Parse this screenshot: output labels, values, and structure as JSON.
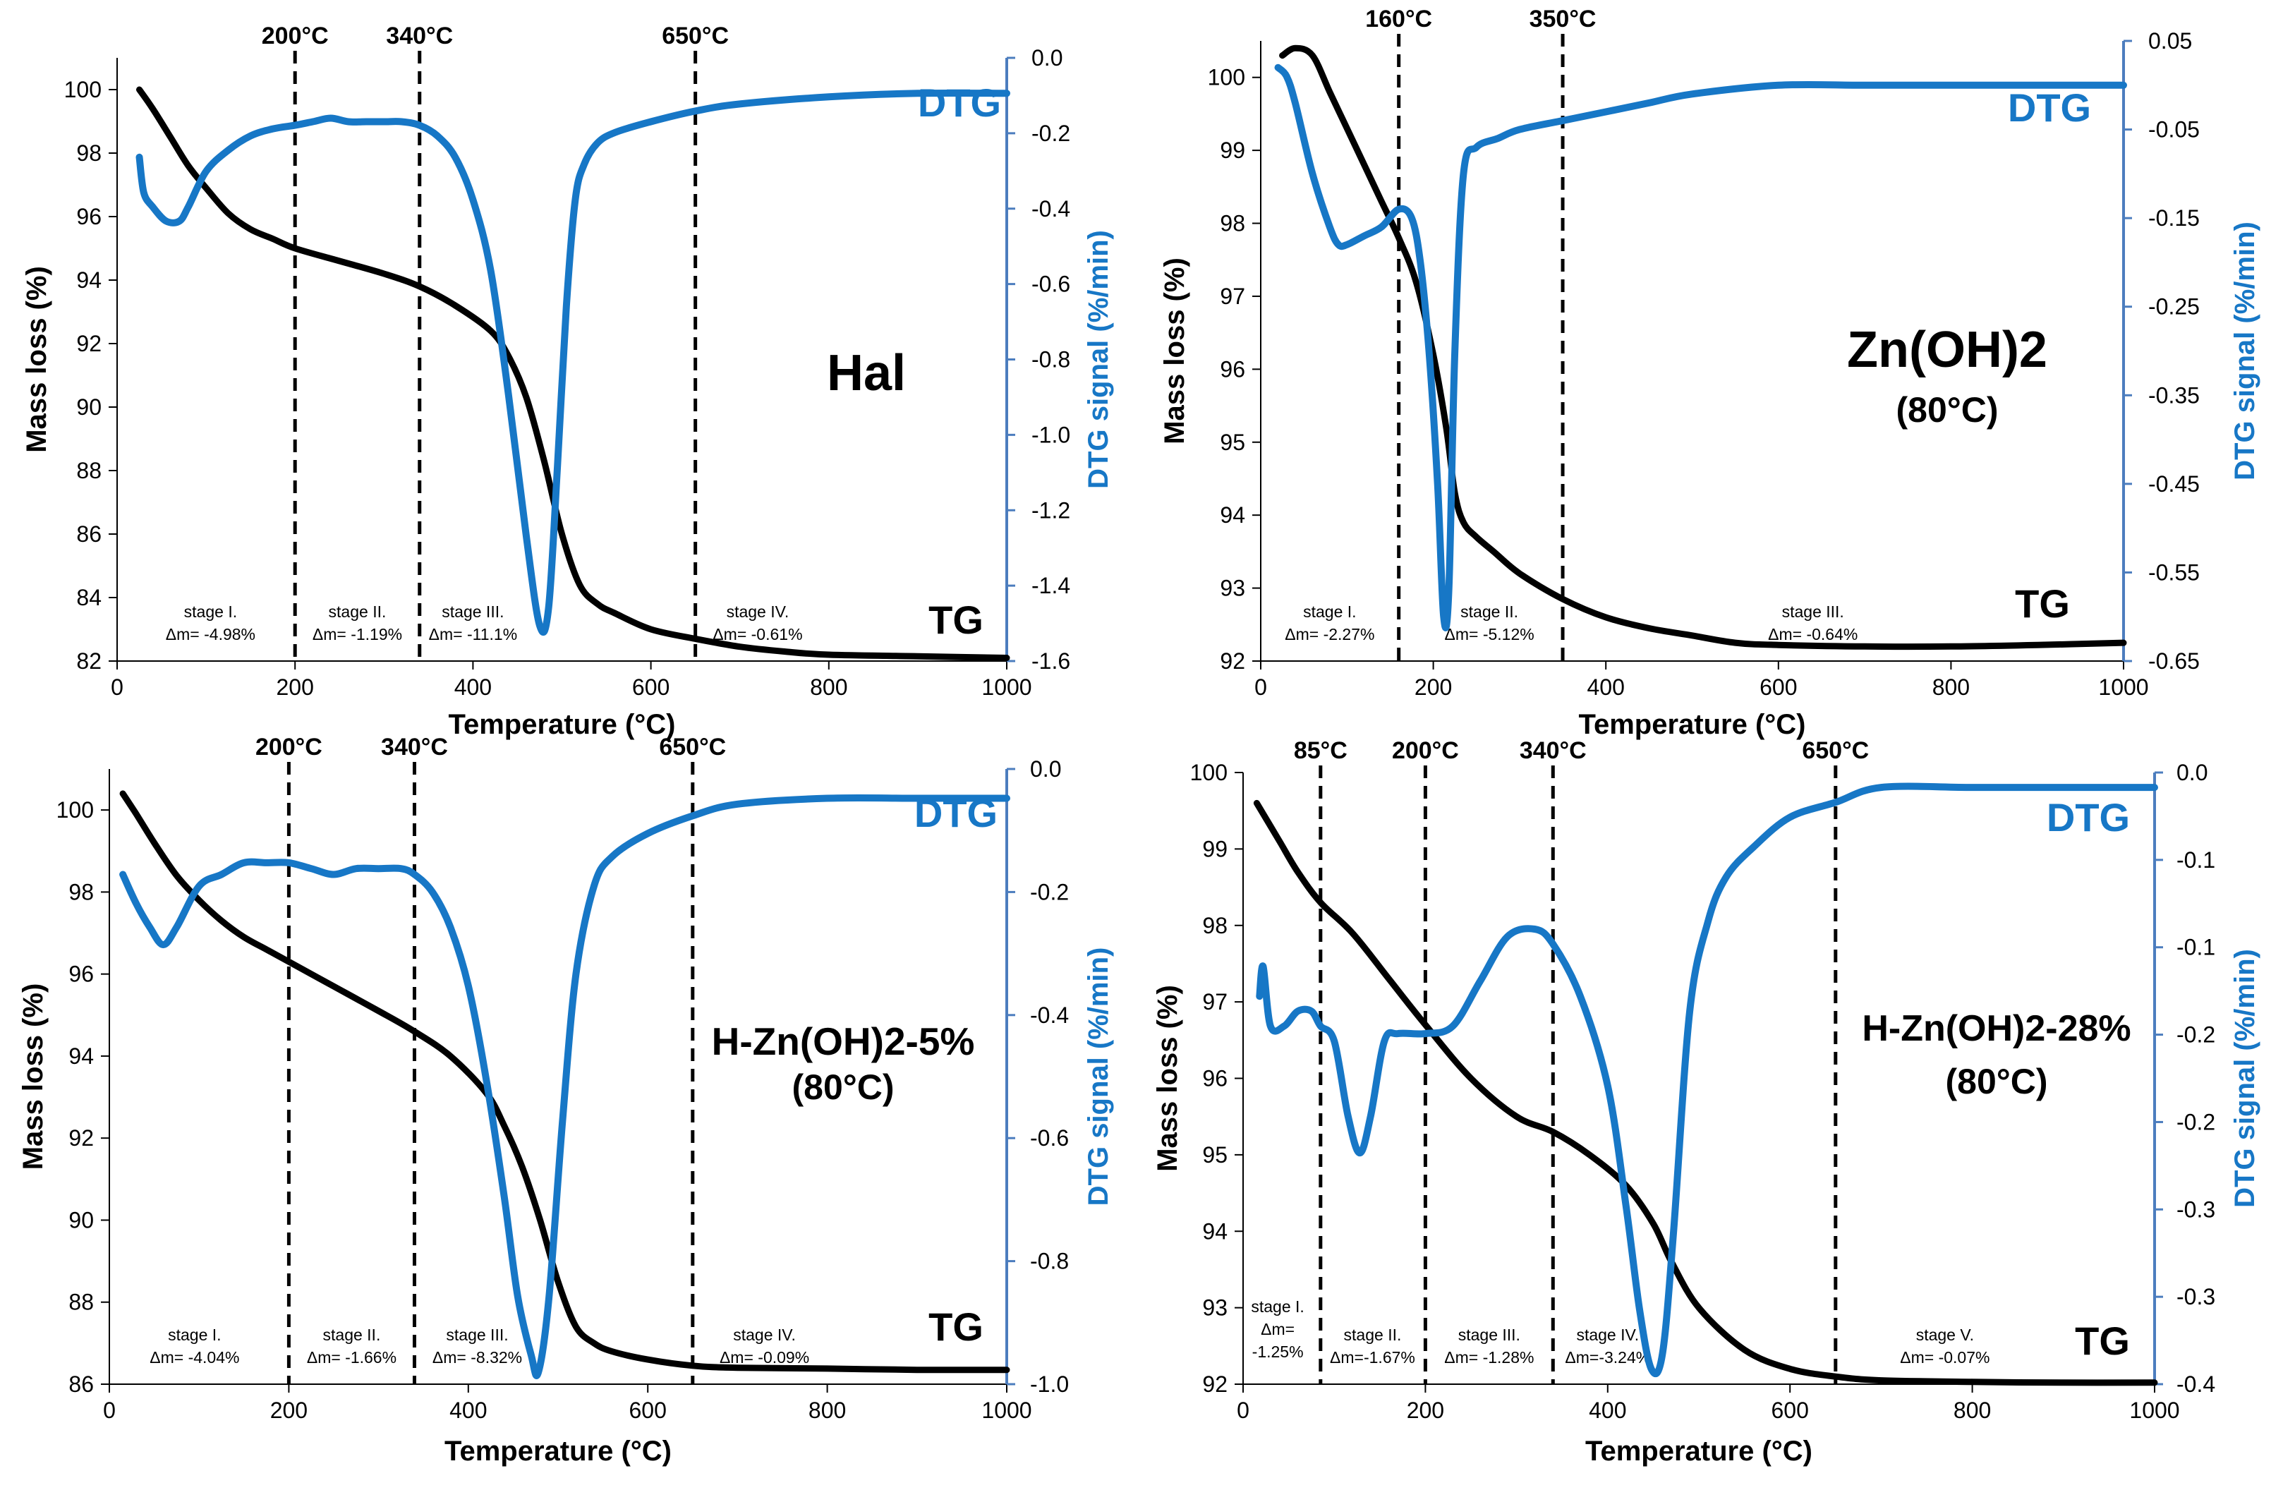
{
  "colors": {
    "tg": "#000000",
    "dtg": "#1777C6",
    "axis_right": "#4C7DBE"
  },
  "chart_data": [
    {
      "type": "line",
      "title": "Hal",
      "subtitle": "",
      "xlabel": "Temperature (°C)",
      "ylabel": "Mass loss (%)",
      "y2label": "DTG signal (%/min)",
      "xlim": [
        0,
        1000
      ],
      "ylim": [
        82,
        101
      ],
      "y2lim": [
        -1.6,
        0.1
      ],
      "xticks": [
        "0",
        "200",
        "400",
        "600",
        "800",
        "1000"
      ],
      "yticks": [
        "82",
        "84",
        "86",
        "88",
        "90",
        "92",
        "94",
        "96",
        "98",
        "100"
      ],
      "y2ticks": [
        "-1.6",
        "-1.4",
        "-1.2",
        "-1.0",
        "-0.8",
        "-0.6",
        "-0.4",
        "-0.2",
        "0.0"
      ],
      "vlines": [
        {
          "x": 200,
          "label": "200°C"
        },
        {
          "x": 340,
          "label": "340°C"
        },
        {
          "x": 650,
          "label": "650°C"
        }
      ],
      "stages": [
        {
          "x": 105,
          "name": "stage I.",
          "dm": "Δm= -4.98%"
        },
        {
          "x": 270,
          "name": "stage II.",
          "dm": "Δm= -1.19%"
        },
        {
          "x": 400,
          "name": "stage III.",
          "dm": "Δm= -11.1%"
        },
        {
          "x": 720,
          "name": "stage IV.",
          "dm": "Δm= -0.61%"
        }
      ],
      "series": [
        {
          "name": "TG",
          "axis": "left",
          "x": [
            25,
            40,
            60,
            80,
            100,
            125,
            150,
            175,
            200,
            250,
            300,
            340,
            380,
            420,
            440,
            460,
            480,
            500,
            520,
            540,
            560,
            600,
            650,
            700,
            750,
            800,
            900,
            1000
          ],
          "y": [
            100.0,
            99.4,
            98.5,
            97.6,
            96.9,
            96.1,
            95.6,
            95.3,
            95.0,
            94.6,
            94.2,
            93.8,
            93.2,
            92.4,
            91.6,
            90.3,
            88.3,
            86.0,
            84.4,
            83.8,
            83.5,
            83.0,
            82.7,
            82.45,
            82.3,
            82.2,
            82.15,
            82.1
          ]
        },
        {
          "name": "DTG",
          "axis": "right",
          "x": [
            25,
            30,
            40,
            55,
            70,
            80,
            100,
            125,
            150,
            175,
            200,
            220,
            240,
            260,
            280,
            300,
            320,
            340,
            360,
            380,
            400,
            420,
            440,
            460,
            475,
            485,
            495,
            505,
            515,
            525,
            540,
            560,
            600,
            650,
            700,
            800,
            900,
            1000
          ],
          "y": [
            -0.18,
            -0.28,
            -0.32,
            -0.36,
            -0.36,
            -0.32,
            -0.22,
            -0.16,
            -0.12,
            -0.1,
            -0.09,
            -0.08,
            -0.07,
            -0.08,
            -0.08,
            -0.08,
            -0.08,
            -0.09,
            -0.12,
            -0.18,
            -0.3,
            -0.5,
            -0.85,
            -1.25,
            -1.5,
            -1.45,
            -1.05,
            -0.6,
            -0.3,
            -0.2,
            -0.14,
            -0.11,
            -0.08,
            -0.05,
            -0.03,
            -0.01,
            0.0,
            0.0
          ]
        }
      ]
    },
    {
      "type": "line",
      "title": "Zn(OH)2",
      "subtitle": "(80°C)",
      "xlabel": "Temperature (°C)",
      "ylabel": "Mass loss  (%)",
      "y2label": "DTG signal (%/min)",
      "xlim": [
        0,
        1000
      ],
      "ylim": [
        92,
        100.5
      ],
      "y2lim": [
        -0.65,
        0.05
      ],
      "xticks": [
        "0",
        "200",
        "400",
        "600",
        "800",
        "1000"
      ],
      "yticks": [
        "92",
        "93",
        "94",
        "95",
        "96",
        "97",
        "98",
        "99",
        "100"
      ],
      "y2ticks": [
        "-0.65",
        "-0.55",
        "-0.45",
        "-0.35",
        "-0.25",
        "-0.15",
        "-0.05",
        "0.05"
      ],
      "vlines": [
        {
          "x": 160,
          "label": "160°C"
        },
        {
          "x": 350,
          "label": "350°C"
        }
      ],
      "stages": [
        {
          "x": 80,
          "name": "stage I.",
          "dm": "Δm= -2.27%"
        },
        {
          "x": 265,
          "name": "stage II.",
          "dm": "Δm= -5.12%"
        },
        {
          "x": 640,
          "name": "stage III.",
          "dm": "Δm= -0.64%"
        }
      ],
      "series": [
        {
          "name": "TG",
          "axis": "left",
          "x": [
            25,
            40,
            60,
            80,
            100,
            120,
            140,
            160,
            180,
            200,
            215,
            225,
            235,
            250,
            270,
            300,
            350,
            400,
            450,
            500,
            550,
            600,
            700,
            800,
            900,
            1000
          ],
          "y": [
            100.3,
            100.4,
            100.3,
            99.8,
            99.3,
            98.8,
            98.3,
            97.8,
            97.2,
            96.2,
            95.2,
            94.3,
            93.9,
            93.7,
            93.5,
            93.2,
            92.85,
            92.6,
            92.45,
            92.35,
            92.25,
            92.22,
            92.2,
            92.2,
            92.22,
            92.25
          ]
        },
        {
          "name": "DTG",
          "axis": "right",
          "x": [
            20,
            30,
            40,
            60,
            80,
            90,
            100,
            120,
            140,
            160,
            175,
            185,
            195,
            205,
            212,
            218,
            225,
            235,
            250,
            275,
            300,
            350,
            400,
            450,
            500,
            600,
            700,
            800,
            900,
            1000
          ],
          "y": [
            0.02,
            0.01,
            -0.02,
            -0.1,
            -0.16,
            -0.18,
            -0.18,
            -0.17,
            -0.16,
            -0.14,
            -0.15,
            -0.2,
            -0.3,
            -0.45,
            -0.6,
            -0.57,
            -0.3,
            -0.1,
            -0.07,
            -0.06,
            -0.05,
            -0.04,
            -0.03,
            -0.02,
            -0.01,
            0.0,
            0.0,
            0.0,
            0.0,
            0.0
          ]
        }
      ]
    },
    {
      "type": "line",
      "title": "H-Zn(OH)2-5%",
      "subtitle": "(80°C)",
      "xlabel": "Temperature (°C)",
      "ylabel": "Mass loss (%)",
      "y2label": "DTG signal (%/min)",
      "xlim": [
        0,
        1000
      ],
      "ylim": [
        86,
        101
      ],
      "y2lim": [
        -1.0,
        0.05
      ],
      "xticks": [
        "0",
        "200",
        "400",
        "600",
        "800",
        "1000"
      ],
      "yticks": [
        "86",
        "88",
        "90",
        "92",
        "94",
        "96",
        "98",
        "100"
      ],
      "y2ticks": [
        "-1.0",
        "-0.8",
        "-0.6",
        "-0.4",
        "-0.2",
        "0.0"
      ],
      "vlines": [
        {
          "x": 200,
          "label": "200°C"
        },
        {
          "x": 340,
          "label": "340°C"
        },
        {
          "x": 650,
          "label": "650°C"
        }
      ],
      "stages": [
        {
          "x": 95,
          "name": "stage I.",
          "dm": "Δm= -4.04%"
        },
        {
          "x": 270,
          "name": "stage II.",
          "dm": "Δm= -1.66%"
        },
        {
          "x": 410,
          "name": "stage III.",
          "dm": "Δm= -8.32%"
        },
        {
          "x": 730,
          "name": "stage IV.",
          "dm": "Δm= -0.09%"
        }
      ],
      "series": [
        {
          "name": "TG",
          "axis": "left",
          "x": [
            15,
            30,
            50,
            75,
            100,
            125,
            150,
            175,
            200,
            250,
            300,
            340,
            380,
            420,
            440,
            460,
            480,
            500,
            520,
            540,
            560,
            600,
            650,
            700,
            800,
            900,
            1000
          ],
          "y": [
            100.4,
            99.9,
            99.2,
            98.4,
            97.8,
            97.3,
            96.9,
            96.6,
            96.3,
            95.7,
            95.1,
            94.6,
            94.0,
            93.1,
            92.3,
            91.3,
            90.0,
            88.5,
            87.4,
            87.0,
            86.8,
            86.6,
            86.45,
            86.4,
            86.38,
            86.35,
            86.35
          ]
        },
        {
          "name": "DTG",
          "axis": "right",
          "x": [
            15,
            30,
            45,
            60,
            75,
            100,
            125,
            150,
            175,
            200,
            225,
            250,
            275,
            300,
            325,
            340,
            360,
            380,
            400,
            420,
            440,
            455,
            470,
            478,
            490,
            505,
            520,
            540,
            560,
            600,
            650,
            700,
            800,
            900,
            1000
          ],
          "y": [
            -0.13,
            -0.18,
            -0.22,
            -0.25,
            -0.22,
            -0.15,
            -0.13,
            -0.11,
            -0.11,
            -0.11,
            -0.12,
            -0.13,
            -0.12,
            -0.12,
            -0.12,
            -0.13,
            -0.16,
            -0.22,
            -0.32,
            -0.48,
            -0.68,
            -0.85,
            -0.95,
            -0.98,
            -0.85,
            -0.55,
            -0.3,
            -0.15,
            -0.1,
            -0.06,
            -0.03,
            -0.01,
            0.0,
            0.0,
            0.0
          ]
        }
      ]
    },
    {
      "type": "line",
      "title": "H-Zn(OH)2-28%",
      "subtitle": "(80°C)",
      "xlabel": "Temperature (°C)",
      "ylabel": "Mass loss (%)",
      "y2label": "DTG signal (%/min)",
      "xlim": [
        0,
        1000
      ],
      "ylim": [
        92,
        100
      ],
      "y2lim": [
        -0.4,
        0.01
      ],
      "xticks": [
        "0",
        "200",
        "400",
        "600",
        "800",
        "1000"
      ],
      "yticks": [
        "92",
        "93",
        "94",
        "95",
        "96",
        "97",
        "98",
        "99",
        "100"
      ],
      "y2ticks": [
        "-0.4",
        "-0.3",
        "-0.3",
        "-0.2",
        "-0.2",
        "-0.1",
        "-0.1",
        "0.0"
      ],
      "vlines": [
        {
          "x": 85,
          "label": "85°C"
        },
        {
          "x": 200,
          "label": "200°C"
        },
        {
          "x": 340,
          "label": "340°C"
        },
        {
          "x": 650,
          "label": "650°C"
        }
      ],
      "stages": [
        {
          "x": 38,
          "name": "stage I.",
          "dm": "Δm=",
          "dm2": "-1.25%"
        },
        {
          "x": 142,
          "name": "stage II.",
          "dm": "Δm=-1.67%"
        },
        {
          "x": 270,
          "name": "stage III.",
          "dm": "Δm= -1.28%"
        },
        {
          "x": 400,
          "name": "stage IV.",
          "dm": "Δm=-3.24%"
        },
        {
          "x": 770,
          "name": "stage V.",
          "dm": "Δm= -0.07%"
        }
      ],
      "series": [
        {
          "name": "TG",
          "axis": "left",
          "x": [
            15,
            40,
            60,
            85,
            120,
            160,
            200,
            250,
            300,
            340,
            380,
            420,
            450,
            470,
            500,
            550,
            600,
            650,
            700,
            800,
            900,
            1000
          ],
          "y": [
            99.6,
            99.1,
            98.7,
            98.3,
            97.9,
            97.3,
            96.7,
            96.0,
            95.5,
            95.3,
            95.0,
            94.6,
            94.1,
            93.6,
            93.0,
            92.45,
            92.2,
            92.1,
            92.05,
            92.03,
            92.02,
            92.02
          ]
        },
        {
          "name": "DTG",
          "axis": "right",
          "x": [
            18,
            22,
            30,
            45,
            60,
            75,
            85,
            100,
            115,
            128,
            140,
            155,
            170,
            200,
            230,
            260,
            290,
            320,
            340,
            370,
            400,
            420,
            435,
            448,
            460,
            472,
            490,
            510,
            530,
            560,
            600,
            650,
            700,
            800,
            900,
            1000
          ],
          "y": [
            -0.14,
            -0.12,
            -0.16,
            -0.16,
            -0.15,
            -0.15,
            -0.16,
            -0.17,
            -0.22,
            -0.245,
            -0.22,
            -0.17,
            -0.165,
            -0.165,
            -0.16,
            -0.13,
            -0.1,
            -0.095,
            -0.105,
            -0.14,
            -0.2,
            -0.28,
            -0.35,
            -0.39,
            -0.38,
            -0.3,
            -0.15,
            -0.09,
            -0.06,
            -0.04,
            -0.02,
            -0.01,
            0.0,
            0.0,
            0.0,
            0.0
          ]
        }
      ]
    }
  ]
}
